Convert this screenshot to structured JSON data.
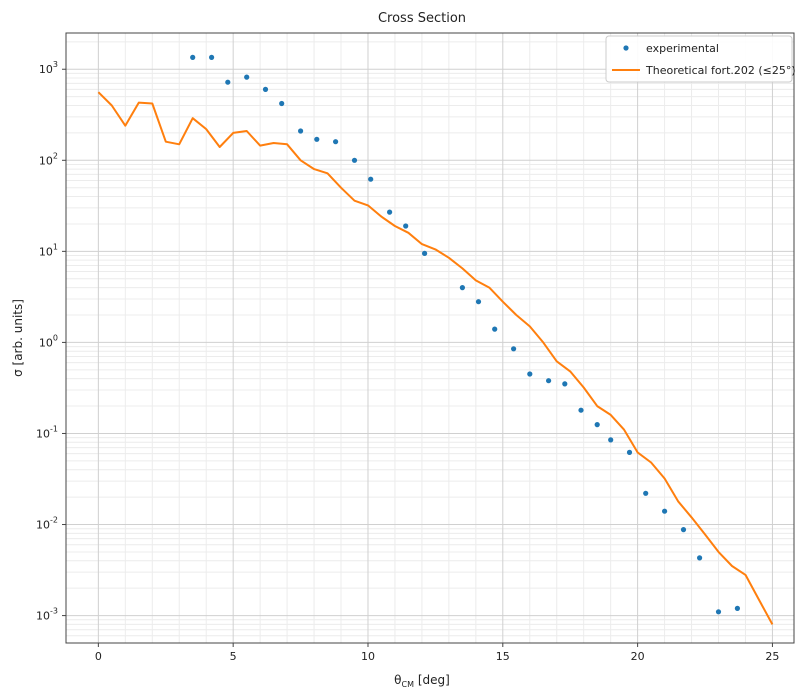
{
  "chart_data": {
    "type": "scatter",
    "title": "Cross Section",
    "xlabel": "θ",
    "xlabel_sub": "CM",
    "xlabel_unit": " [deg]",
    "ylabel": "σ [arb. units]",
    "xlim": [
      -1.2,
      25.8
    ],
    "ylim": [
      0.0005,
      2500
    ],
    "yscale": "log",
    "grid": true,
    "minor_grid": true,
    "legend_position": "top-right",
    "x_ticks": [
      0,
      5,
      10,
      15,
      20,
      25
    ],
    "x_tick_labels": [
      "0",
      "5",
      "10",
      "15",
      "20",
      "25"
    ],
    "y_ticks": [
      0.001,
      0.01,
      0.1,
      1,
      10,
      100,
      1000
    ],
    "y_tick_labels": [
      {
        "base": "10",
        "exp": "-3"
      },
      {
        "base": "10",
        "exp": "-2"
      },
      {
        "base": "10",
        "exp": "-1"
      },
      {
        "base": "10",
        "exp": "0"
      },
      {
        "base": "10",
        "exp": "1"
      },
      {
        "base": "10",
        "exp": "2"
      },
      {
        "base": "10",
        "exp": "3"
      }
    ],
    "colors": {
      "experimental": "#1f77b4",
      "theoretical": "#ff7f0e",
      "grid": "#d0d0d0",
      "minor_grid": "#ececec"
    },
    "series": [
      {
        "name": "experimental",
        "kind": "scatter",
        "x": [
          3.5,
          4.2,
          4.8,
          5.5,
          6.2,
          6.8,
          7.5,
          8.1,
          8.8,
          9.5,
          10.1,
          10.8,
          11.4,
          12.1,
          13.5,
          14.1,
          14.7,
          15.4,
          16.0,
          16.7,
          17.3,
          17.9,
          18.5,
          19.0,
          19.7,
          20.3,
          21.0,
          21.7,
          22.3,
          23.0,
          23.7
        ],
        "y": [
          1350,
          1350,
          720,
          820,
          600,
          420,
          210,
          170,
          160,
          100,
          62,
          27,
          19,
          9.5,
          4.0,
          2.8,
          1.4,
          0.85,
          0.45,
          0.38,
          0.35,
          0.18,
          0.125,
          0.085,
          0.062,
          0.022,
          0.014,
          0.0088,
          0.0043,
          0.0011,
          0.0012
        ]
      },
      {
        "name": "Theoretical fort.202 (≤25°)",
        "kind": "line",
        "x": [
          0,
          0.5,
          1.0,
          1.5,
          2.0,
          2.5,
          3.0,
          3.5,
          4.0,
          4.5,
          5.0,
          5.5,
          6.0,
          6.5,
          7.0,
          7.5,
          8.0,
          8.5,
          9.0,
          9.5,
          10.0,
          10.5,
          11.0,
          11.5,
          12.0,
          12.5,
          13.0,
          13.5,
          14.0,
          14.5,
          15.0,
          15.5,
          16.0,
          16.5,
          17.0,
          17.5,
          18.0,
          18.5,
          19.0,
          19.5,
          20.0,
          20.5,
          21.0,
          21.5,
          22.0,
          22.5,
          23.0,
          23.5,
          24.0,
          24.5,
          25.0
        ],
        "y": [
          560,
          400,
          240,
          430,
          420,
          160,
          150,
          290,
          220,
          140,
          200,
          210,
          145,
          155,
          150,
          100,
          80,
          72,
          50,
          36,
          32,
          24,
          19,
          16,
          12,
          10.5,
          8.5,
          6.5,
          4.8,
          4.0,
          2.8,
          2.0,
          1.5,
          1.0,
          0.62,
          0.48,
          0.32,
          0.2,
          0.16,
          0.11,
          0.062,
          0.048,
          0.032,
          0.018,
          0.012,
          0.0078,
          0.005,
          0.0035,
          0.0028,
          0.0015,
          0.0008
        ]
      }
    ]
  }
}
